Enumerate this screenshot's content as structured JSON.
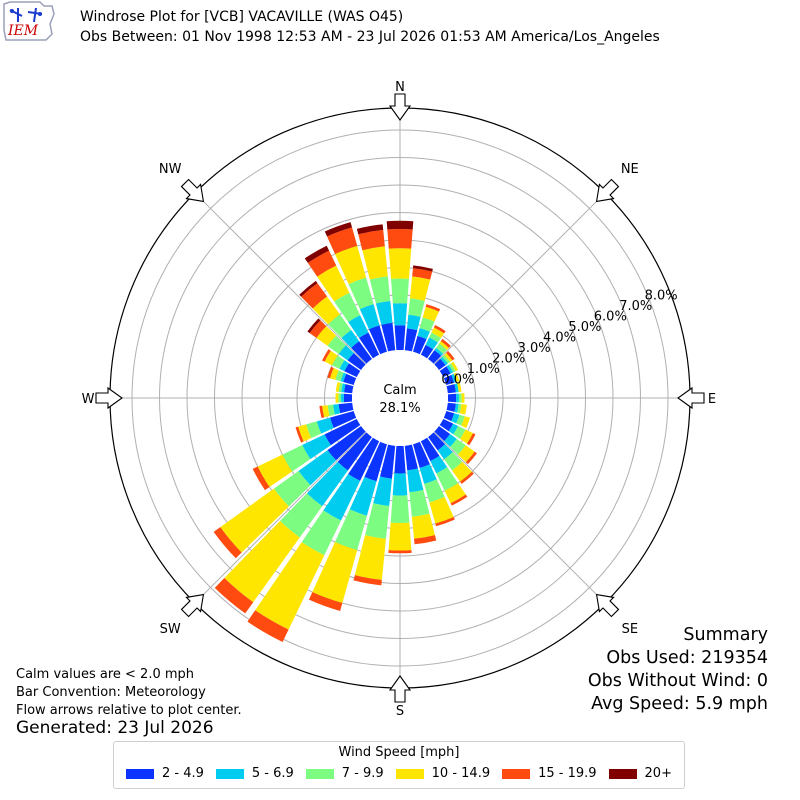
{
  "header": {
    "title_line1": "Windrose Plot for [VCB] VACAVILLE (WAS O45)",
    "title_line2": "Obs Between: 01 Nov 1998 12:53 AM - 23 Jul 2026 01:53 AM America/Los_Angeles",
    "logo_text": "IEM"
  },
  "notes": {
    "calm": "Calm values are < 2.0 mph",
    "bar_convention": "Bar Convention: Meteorology",
    "flow": "Flow arrows relative to plot center.",
    "generated": "Generated: 23 Jul 2026"
  },
  "summary": {
    "title": "Summary",
    "obs_used": "Obs Used: 219354",
    "obs_without_wind": "Obs Without Wind: 0",
    "avg_speed": "Avg Speed: 5.9 mph"
  },
  "legend": {
    "title": "Wind Speed [mph]",
    "colors": [
      "#0b35ff",
      "#00ccf0",
      "#7cfc80",
      "#ffe600",
      "#ff4a10",
      "#800000"
    ]
  },
  "chart_data": {
    "type": "windrose",
    "calm_label": "Calm",
    "calm_value": "28.1%",
    "directions": [
      "N",
      "NE",
      "E",
      "SE",
      "S",
      "SW",
      "W",
      "NW"
    ],
    "radial_ticks": [
      "0.0%",
      "1.0%",
      "2.0%",
      "3.0%",
      "4.0%",
      "5.0%",
      "6.0%",
      "7.0%",
      "8.0%"
    ],
    "rmax": 8.0,
    "speed_bins": [
      "2 - 4.9",
      "5 - 6.9",
      "7 - 9.9",
      "10 - 14.9",
      "15 - 19.9",
      "20+"
    ],
    "sector_bearings": [
      0,
      10,
      20,
      30,
      40,
      50,
      60,
      70,
      80,
      90,
      100,
      110,
      120,
      130,
      140,
      150,
      160,
      170,
      180,
      190,
      200,
      210,
      220,
      230,
      240,
      250,
      260,
      270,
      280,
      290,
      300,
      310,
      320,
      330,
      340,
      350
    ],
    "cumulative": [
      [
        0.9,
        1.7,
        2.6,
        3.7,
        4.4,
        4.7
      ],
      [
        0.8,
        1.3,
        1.9,
        2.7,
        3.0,
        3.1
      ],
      [
        0.6,
        0.9,
        1.3,
        1.7,
        1.8,
        1.8
      ],
      [
        0.4,
        0.7,
        0.9,
        1.1,
        1.2,
        1.2
      ],
      [
        0.4,
        0.5,
        0.7,
        0.8,
        0.9,
        0.9
      ],
      [
        0.3,
        0.4,
        0.5,
        0.6,
        0.7,
        0.7
      ],
      [
        0.3,
        0.4,
        0.5,
        0.6,
        0.6,
        0.6
      ],
      [
        0.3,
        0.4,
        0.4,
        0.5,
        0.5,
        0.5
      ],
      [
        0.3,
        0.4,
        0.4,
        0.5,
        0.5,
        0.5
      ],
      [
        0.3,
        0.4,
        0.5,
        0.6,
        0.6,
        0.6
      ],
      [
        0.3,
        0.4,
        0.5,
        0.7,
        0.7,
        0.7
      ],
      [
        0.3,
        0.5,
        0.7,
        0.9,
        0.9,
        0.9
      ],
      [
        0.4,
        0.6,
        0.9,
        1.2,
        1.3,
        1.3
      ],
      [
        0.5,
        0.8,
        1.2,
        1.6,
        1.7,
        1.7
      ],
      [
        0.6,
        1.0,
        1.5,
        2.0,
        2.1,
        2.1
      ],
      [
        0.8,
        1.3,
        2.0,
        2.5,
        2.6,
        2.6
      ],
      [
        0.9,
        1.5,
        2.2,
        3.0,
        3.1,
        3.1
      ],
      [
        0.9,
        1.7,
        2.6,
        3.4,
        3.6,
        3.6
      ],
      [
        1.0,
        1.8,
        2.8,
        3.8,
        3.9,
        3.9
      ],
      [
        1.2,
        2.2,
        3.4,
        4.9,
        5.1,
        5.1
      ],
      [
        1.4,
        2.7,
        4.0,
        6.0,
        6.3,
        6.3
      ],
      [
        1.6,
        3.2,
        4.6,
        7.6,
        8.1,
        8.1
      ],
      [
        1.5,
        3.1,
        4.5,
        7.4,
        7.9,
        7.9
      ],
      [
        1.5,
        2.8,
        3.9,
        6.3,
        6.6,
        6.6
      ],
      [
        1.3,
        2.2,
        3.0,
        4.0,
        4.2,
        4.2
      ],
      [
        0.9,
        1.4,
        1.8,
        2.1,
        2.2,
        2.2
      ],
      [
        0.5,
        0.7,
        0.9,
        1.1,
        1.2,
        1.2
      ],
      [
        0.3,
        0.4,
        0.5,
        0.6,
        0.6,
        0.6
      ],
      [
        0.3,
        0.4,
        0.5,
        0.6,
        0.6,
        0.6
      ],
      [
        0.4,
        0.5,
        0.7,
        0.9,
        1.0,
        1.0
      ],
      [
        0.5,
        0.7,
        1.0,
        1.3,
        1.4,
        1.4
      ],
      [
        0.6,
        1.0,
        1.5,
        2.0,
        2.3,
        2.4
      ],
      [
        0.8,
        1.3,
        2.0,
        2.8,
        3.4,
        3.5
      ],
      [
        0.9,
        1.6,
        2.5,
        3.6,
        4.2,
        4.4
      ],
      [
        1.0,
        1.8,
        2.8,
        4.0,
        4.7,
        4.9
      ],
      [
        1.0,
        1.8,
        2.7,
        3.8,
        4.4,
        4.6
      ]
    ],
    "grid": true
  }
}
